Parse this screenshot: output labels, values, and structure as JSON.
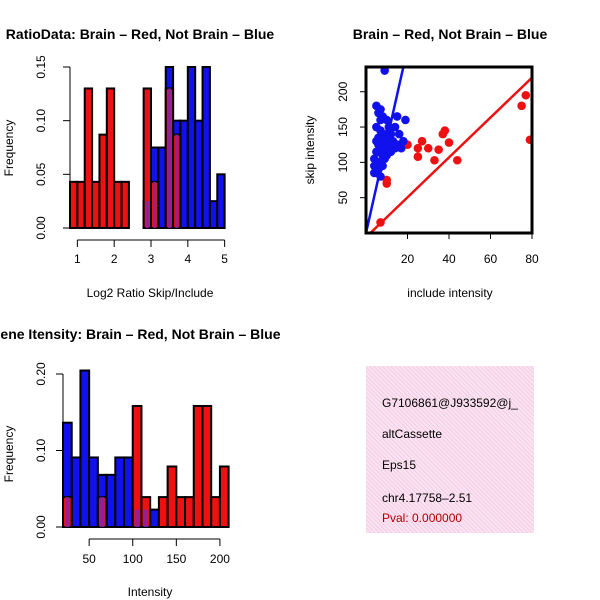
{
  "colors": {
    "red": "#ee1111",
    "blue": "#1111ee",
    "overlap": "#8822aa",
    "axis": "#000000",
    "info_bg": "#fbe4f2",
    "pval": "#b00000"
  },
  "chart_data": [
    {
      "id": "ratio",
      "type": "bar",
      "title": "RatioData: Brain – Red, Not Brain – Blue",
      "xlabel": "Log2 Ratio Skip/Include",
      "ylabel": "Frequency",
      "xlim": [
        0.8,
        5.2
      ],
      "ylim": [
        0,
        0.15
      ],
      "xticks": [
        "1",
        "2",
        "3",
        "4",
        "5"
      ],
      "yticks": [
        "0.00",
        "0.05",
        "0.10",
        "0.15"
      ],
      "bin_width": 0.2,
      "series": [
        {
          "name": "Brain",
          "color": "red",
          "bins": [
            [
              0.8,
              0.043
            ],
            [
              1.0,
              0.043
            ],
            [
              1.2,
              0.13
            ],
            [
              1.4,
              0.043
            ],
            [
              1.6,
              0.087
            ],
            [
              1.8,
              0.13
            ],
            [
              2.0,
              0.043
            ],
            [
              2.2,
              0.043
            ],
            [
              2.8,
              0.13
            ],
            [
              3.0,
              0.043
            ],
            [
              3.4,
              0.13
            ],
            [
              3.6,
              0.087
            ]
          ]
        },
        {
          "name": "Not Brain",
          "color": "blue",
          "bins": [
            [
              2.8,
              0.025
            ],
            [
              3.0,
              0.075
            ],
            [
              3.2,
              0.075
            ],
            [
              3.4,
              0.15
            ],
            [
              3.6,
              0.1
            ],
            [
              3.8,
              0.1
            ],
            [
              4.0,
              0.15
            ],
            [
              4.2,
              0.1
            ],
            [
              4.4,
              0.15
            ],
            [
              4.6,
              0.025
            ],
            [
              4.8,
              0.05
            ]
          ]
        }
      ]
    },
    {
      "id": "scatter",
      "type": "scatter",
      "title": "Brain – Red, Not Brain – Blue",
      "xlabel": "include intensity",
      "ylabel": "skip intensity",
      "xlim": [
        0,
        80
      ],
      "ylim": [
        0,
        235
      ],
      "xticks": [
        "20",
        "40",
        "60",
        "80"
      ],
      "yticks": [
        "50",
        "100",
        "150",
        "200"
      ],
      "series": [
        {
          "name": "Brain",
          "color": "red",
          "points": [
            [
              7,
              15
            ],
            [
              10,
              70
            ],
            [
              10,
              75
            ],
            [
              13,
              120
            ],
            [
              15,
              125
            ],
            [
              20,
              125
            ],
            [
              25,
              120
            ],
            [
              25,
              108
            ],
            [
              27,
              130
            ],
            [
              30,
              120
            ],
            [
              33,
              103
            ],
            [
              35,
              118
            ],
            [
              37,
              140
            ],
            [
              38,
              145
            ],
            [
              40,
              128
            ],
            [
              44,
              103
            ],
            [
              75,
              180
            ],
            [
              77,
              195
            ],
            [
              79,
              132
            ]
          ],
          "fit": [
            [
              0,
              -6
            ],
            [
              80,
              220
            ]
          ]
        },
        {
          "name": "Not Brain",
          "color": "blue",
          "points": [
            [
              4,
              85
            ],
            [
              4,
              95
            ],
            [
              4,
              105
            ],
            [
              5,
              115
            ],
            [
              5,
              130
            ],
            [
              5,
              150
            ],
            [
              5,
              180
            ],
            [
              6,
              90
            ],
            [
              6,
              100
            ],
            [
              6,
              115
            ],
            [
              6,
              125
            ],
            [
              6,
              135
            ],
            [
              6,
              170
            ],
            [
              7,
              80
            ],
            [
              7,
              100
            ],
            [
              7,
              120
            ],
            [
              7,
              145
            ],
            [
              7,
              160
            ],
            [
              7,
              175
            ],
            [
              8,
              95
            ],
            [
              8,
              110
            ],
            [
              8,
              125
            ],
            [
              8,
              140
            ],
            [
              8,
              165
            ],
            [
              9,
              105
            ],
            [
              9,
              120
            ],
            [
              9,
              135
            ],
            [
              9,
              230
            ],
            [
              10,
              110
            ],
            [
              10,
              125
            ],
            [
              10,
              140
            ],
            [
              10,
              160
            ],
            [
              11,
              120
            ],
            [
              11,
              130
            ],
            [
              11,
              150
            ],
            [
              12,
              115
            ],
            [
              12,
              125
            ],
            [
              12,
              140
            ],
            [
              13,
              130
            ],
            [
              14,
              120
            ],
            [
              14,
              150
            ],
            [
              15,
              125
            ],
            [
              15,
              165
            ],
            [
              16,
              140
            ],
            [
              17,
              120
            ],
            [
              18,
              130
            ],
            [
              19,
              160
            ]
          ],
          "fit": [
            [
              0,
              0
            ],
            [
              18,
              235
            ]
          ]
        }
      ]
    },
    {
      "id": "intensity",
      "type": "bar",
      "title": "Gene Itensity: Brain – Red, Not Brain – Blue",
      "xlabel": "Intensity",
      "ylabel": "Frequency",
      "xlim": [
        20,
        215
      ],
      "ylim": [
        0,
        0.22
      ],
      "xticks": [
        "50",
        "100",
        "150",
        "200"
      ],
      "yticks": [
        "0.00",
        "0.10",
        "0.20"
      ],
      "bin_width": 10,
      "series": [
        {
          "name": "Brain",
          "color": "red",
          "bins": [
            [
              20,
              0.043
            ],
            [
              60,
              0.043
            ],
            [
              100,
              0.174
            ],
            [
              110,
              0.043
            ],
            [
              130,
              0.043
            ],
            [
              140,
              0.087
            ],
            [
              150,
              0.043
            ],
            [
              160,
              0.043
            ],
            [
              170,
              0.174
            ],
            [
              180,
              0.174
            ],
            [
              190,
              0.043
            ],
            [
              200,
              0.087
            ]
          ]
        },
        {
          "name": "Not Brain",
          "color": "blue",
          "bins": [
            [
              20,
              0.15
            ],
            [
              30,
              0.1
            ],
            [
              40,
              0.225
            ],
            [
              50,
              0.1
            ],
            [
              60,
              0.075
            ],
            [
              70,
              0.075
            ],
            [
              80,
              0.1
            ],
            [
              90,
              0.1
            ],
            [
              100,
              0.025
            ],
            [
              110,
              0.025
            ],
            [
              120,
              0.025
            ]
          ]
        }
      ]
    }
  ],
  "info": {
    "event_id": "G7106861@J933592@j_",
    "event_type": "altCassette",
    "gene": "Eps15",
    "location": "chr4.17758–2.51",
    "pval": "Pval: 0.000000"
  }
}
